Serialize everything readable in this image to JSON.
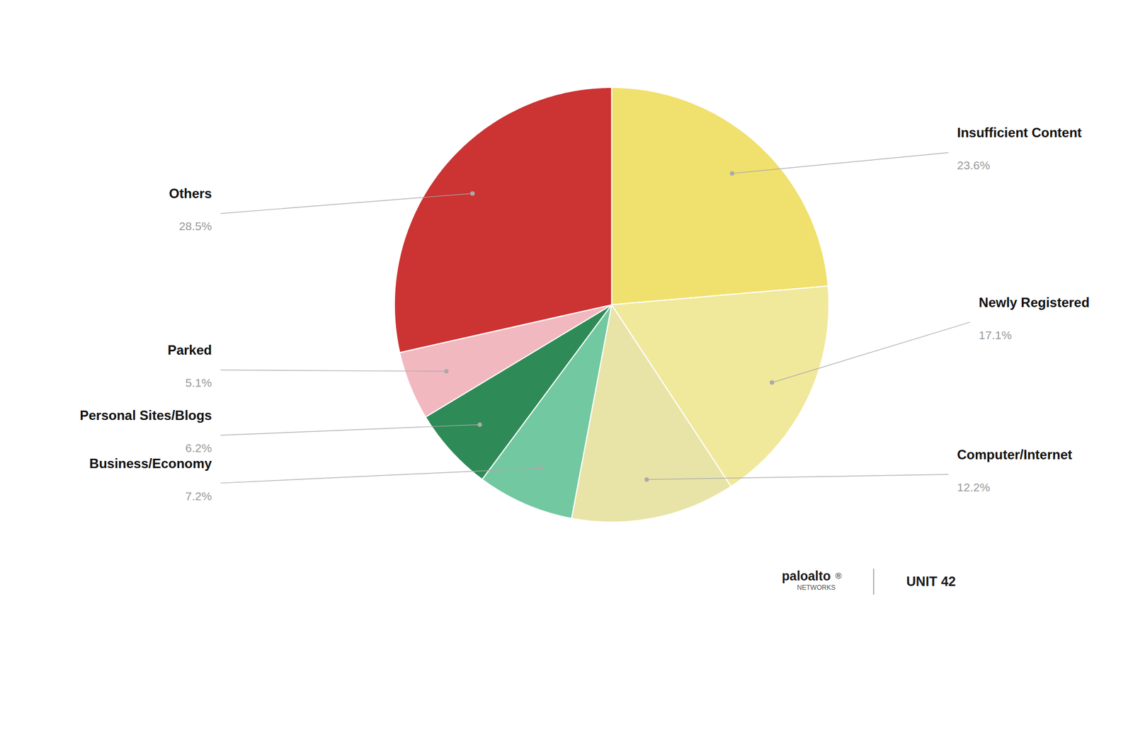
{
  "chart_data": {
    "type": "pie",
    "categories": [
      "Insufficient Content",
      "Newly Registered",
      "Computer/Internet",
      "Business/Economy",
      "Personal Sites/Blogs",
      "Parked",
      "Others"
    ],
    "values": [
      23.6,
      17.1,
      12.2,
      7.2,
      6.2,
      5.1,
      28.5
    ],
    "value_labels": [
      "23.6%",
      "17.1%",
      "12.2%",
      "7.2%",
      "6.2%",
      "5.1%",
      "28.5%"
    ],
    "colors": [
      "#f0e06e",
      "#f0e89a",
      "#e8e4a8",
      "#72c8a0",
      "#2e8b57",
      "#f2b8c0",
      "#cc3333"
    ],
    "data_labels": true,
    "annotations": [
      "paloalto",
      "®",
      "NETWORKS",
      "UNIT 42"
    ]
  }
}
